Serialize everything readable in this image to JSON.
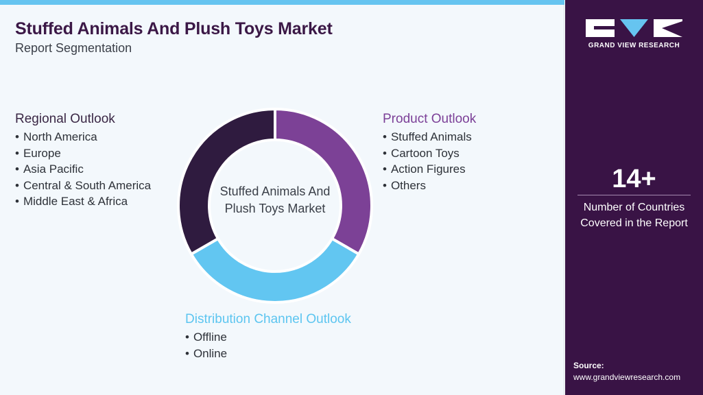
{
  "header": {
    "title": "Stuffed Animals And Plush Toys Market",
    "subtitle": "Report Segmentation"
  },
  "colors": {
    "regional": "#2f1b3f",
    "product": "#7c4196",
    "distribution": "#62c6f1",
    "sidebar": "#391345",
    "top_bar": "#66c4f0"
  },
  "diagram": {
    "center_label": "Stuffed Animals And Plush Toys Market",
    "segments": {
      "regional": {
        "heading": "Regional Outlook",
        "items": [
          "North America",
          "Europe",
          "Asia Pacific",
          "Central & South America",
          "Middle East & Africa"
        ]
      },
      "product": {
        "heading": "Product Outlook",
        "items": [
          "Stuffed Animals",
          "Cartoon Toys",
          "Action Figures",
          "Others"
        ]
      },
      "distribution": {
        "heading": "Distribution Channel Outlook",
        "items": [
          "Offline",
          "Online"
        ]
      }
    }
  },
  "sidebar": {
    "logo_text": "GRAND VIEW RESEARCH",
    "logo_icon": "grand-view-research-logo",
    "stat_value": "14+",
    "stat_label": "Number of Countries Covered in the Report",
    "source_label": "Source:",
    "source_url": "www.grandviewresearch.com"
  }
}
